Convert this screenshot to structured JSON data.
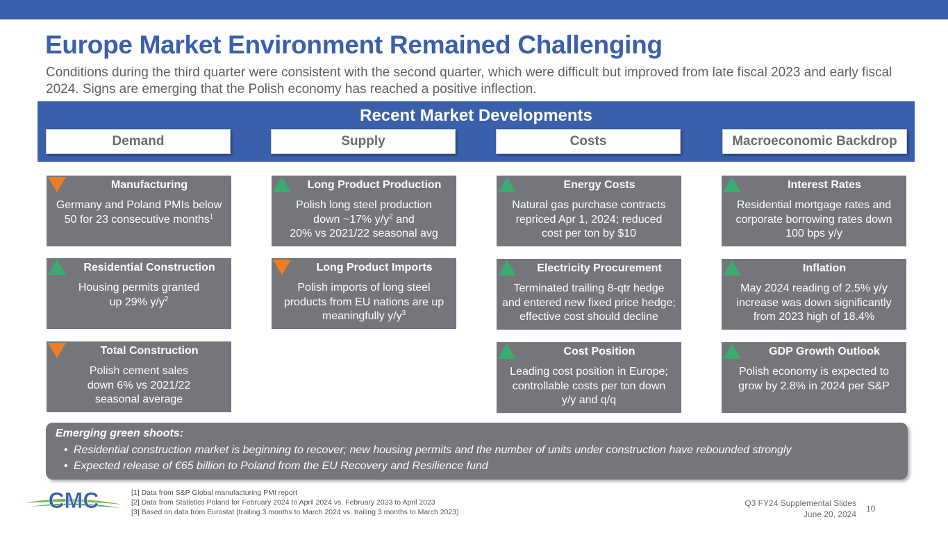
{
  "slide": {
    "title": "Europe Market Environment Remained Challenging",
    "subtitle": "Conditions during the third quarter were consistent with the second quarter, which were difficult but improved from late fiscal 2023 and early fiscal 2024.  Signs are emerging that the Polish economy has reached a positive inflection."
  },
  "panel": {
    "heading": "Recent Market Developments",
    "columns": [
      "Demand",
      "Supply",
      "Costs",
      "Macroeconomic Backdrop"
    ]
  },
  "colors": {
    "brand_blue": "#3a5fab",
    "card_gray": "#75767b",
    "up_green": "#3cab6f",
    "down_orange": "#f07d22"
  },
  "cards": {
    "demand": [
      {
        "direction": "down",
        "icon": "down-triangle-icon",
        "title": "Manufacturing",
        "body": "Germany and Poland PMIs below\n50 for 23 consecutive months",
        "note": "1"
      },
      {
        "direction": "up",
        "icon": "up-triangle-icon",
        "title": "Residential Construction",
        "body": "Housing permits granted\nup 29% y/y",
        "note": "2"
      },
      {
        "direction": "down",
        "icon": "down-triangle-icon",
        "title": "Total Construction",
        "body": "Polish cement sales\ndown 6% vs 2021/22\nseasonal average",
        "note": ""
      }
    ],
    "supply": [
      {
        "direction": "up",
        "icon": "up-triangle-icon",
        "title": "Long Product Production",
        "body": "Polish long steel production\ndown ~17% y/y",
        "note": "2",
        "body_after": " and\n20% vs 2021/22 seasonal avg"
      },
      {
        "direction": "down",
        "icon": "down-triangle-icon",
        "title": "Long Product Imports",
        "body": "Polish imports of long steel\nproducts from EU nations are up\nmeaningfully y/y",
        "note": "3"
      }
    ],
    "costs": [
      {
        "direction": "up",
        "icon": "up-triangle-icon",
        "title": "Energy Costs",
        "body": "Natural gas purchase contracts\nrepriced Apr 1, 2024; reduced\ncost per ton by $10",
        "note": ""
      },
      {
        "direction": "up",
        "icon": "up-triangle-icon",
        "title": "Electricity Procurement",
        "body": "Terminated trailing 8-qtr hedge\nand entered new fixed price hedge;\neffective cost should decline",
        "note": ""
      },
      {
        "direction": "up",
        "icon": "up-triangle-icon",
        "title": "Cost Position",
        "body": "Leading cost position in Europe;\ncontrollable costs per ton down\ny/y and q/q",
        "note": ""
      }
    ],
    "macro": [
      {
        "direction": "up",
        "icon": "up-triangle-icon",
        "title": "Interest Rates",
        "body": "Residential mortgage rates and\ncorporate borrowing rates down\n100 bps y/y",
        "note": ""
      },
      {
        "direction": "up",
        "icon": "up-triangle-icon",
        "title": "Inflation",
        "body": "May 2024 reading of 2.5% y/y\nincrease was down significantly\nfrom 2023 high of 18.4%",
        "note": ""
      },
      {
        "direction": "up",
        "icon": "up-triangle-icon",
        "title": "GDP Growth Outlook",
        "body": "Polish economy is expected to\ngrow by 2.8% in 2024 per S&P",
        "note": ""
      }
    ]
  },
  "green_shoots": {
    "title": "Emerging green shoots:",
    "items": [
      "Residential construction market is beginning to recover; new housing permits and the number of units under construction have rebounded strongly",
      "Expected release of €65 billion to Poland from the EU Recovery and Resilience fund"
    ]
  },
  "footer": {
    "logo_text": "CMC",
    "footnotes": [
      "[1] Data from S&P Global manufacturing PMI report",
      "[2] Data from Statistics Poland for February 2024 to April 2024 vs. February 2023 to April 2023",
      "[3] Based on data from Eurostat (trailing 3 months to March 2024 vs. trailing 3 months to March 2023)"
    ],
    "deck": "Q3 FY24 Supplemental Slides",
    "date": "June 20, 2024",
    "page": "10"
  }
}
